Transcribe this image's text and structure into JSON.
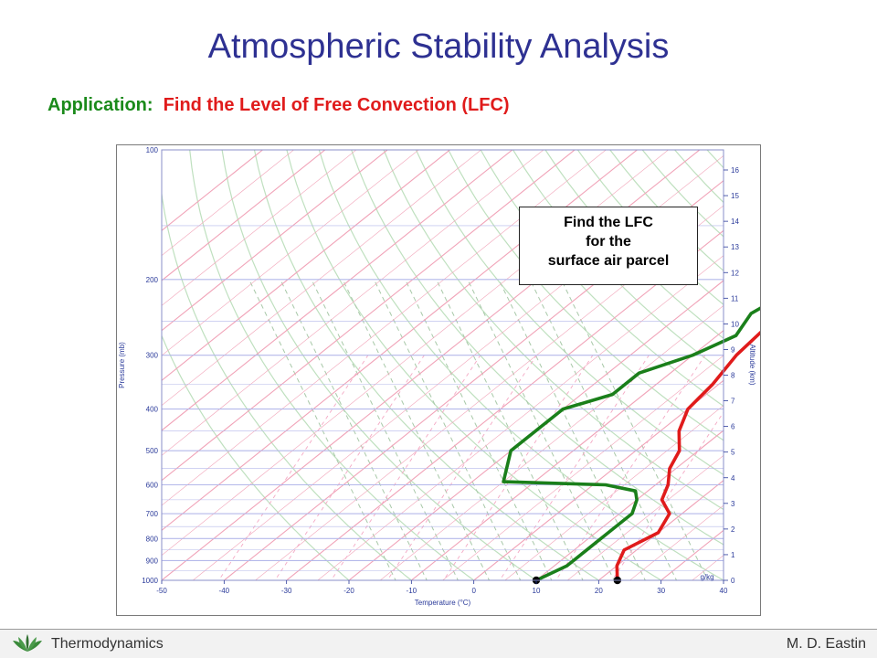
{
  "slide": {
    "title": "Atmospheric Stability Analysis",
    "subtitle_lead": "Application:",
    "subtitle_rest": "Find the Level of Free Convection (LFC)",
    "callout": [
      "Find the LFC",
      "for the",
      "surface air parcel"
    ]
  },
  "footer": {
    "left": "Thermodynamics",
    "right": "M. D. Eastin",
    "icon": "leaf-logo-icon"
  },
  "chart_data": {
    "type": "line",
    "subtype": "skew-T log-P diagram",
    "xlabel": "Temperature (°C)",
    "ylabel": "Pressure (mb)",
    "y2label": "Altitude (km)",
    "mixing_ratio_label": "g/kg",
    "temperature_ticks": [
      "-50",
      "-40",
      "-30",
      "-20",
      "-10",
      "0",
      "10",
      "20",
      "30",
      "40"
    ],
    "pressure_ticks": [
      "100",
      "200",
      "300",
      "400",
      "500",
      "600",
      "700",
      "800",
      "900",
      "1000"
    ],
    "altitude_ticks": [
      "0",
      "1",
      "2",
      "3",
      "4",
      "5",
      "6",
      "7",
      "8",
      "9",
      "10",
      "11",
      "12",
      "13",
      "14",
      "15",
      "16"
    ],
    "xlim": [
      -50,
      40
    ],
    "ylim": [
      1000,
      100
    ],
    "y_scale": "log",
    "colors": {
      "temperature": "#e01b1b",
      "dewpoint": "#1a7f1a",
      "grid": "#f1a3b8",
      "isobar": "#b4b8ea"
    },
    "series": [
      {
        "key": "temperature",
        "points": [
          [
            23,
            1000
          ],
          [
            20,
            925
          ],
          [
            18,
            850
          ],
          [
            20,
            775
          ],
          [
            18,
            700
          ],
          [
            14,
            650
          ],
          [
            12,
            600
          ],
          [
            9,
            550
          ],
          [
            7,
            500
          ],
          [
            3,
            450
          ],
          [
            0,
            400
          ],
          [
            -1,
            350
          ],
          [
            -3,
            300
          ],
          [
            -4,
            250
          ],
          [
            -5,
            200
          ],
          [
            -2,
            175
          ],
          [
            0,
            150
          ],
          [
            10,
            110
          ]
        ]
      },
      {
        "key": "dewpoint",
        "points": [
          [
            10,
            1000
          ],
          [
            12,
            925
          ],
          [
            12,
            850
          ],
          [
            12,
            775
          ],
          [
            12,
            700
          ],
          [
            10,
            650
          ],
          [
            8,
            620
          ],
          [
            2,
            600
          ],
          [
            -15,
            590
          ],
          [
            -20,
            500
          ],
          [
            -20,
            400
          ],
          [
            -15,
            370
          ],
          [
            -15,
            330
          ],
          [
            -10,
            300
          ],
          [
            -7,
            270
          ],
          [
            -9,
            240
          ],
          [
            -7,
            210
          ],
          [
            -6,
            200
          ]
        ]
      }
    ],
    "markers": [
      {
        "key": "dewpoint",
        "x": 10,
        "y": 1000
      },
      {
        "key": "temperature",
        "x": 23,
        "y": 1000
      }
    ]
  }
}
